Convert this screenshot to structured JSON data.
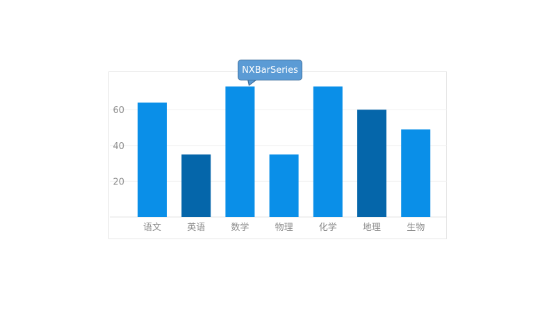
{
  "tooltip": {
    "text": "NXBarSeries"
  },
  "chart_data": {
    "type": "bar",
    "categories": [
      "语文",
      "英语",
      "数学",
      "物理",
      "化学",
      "地理",
      "生物"
    ],
    "values": [
      64,
      35,
      73,
      35,
      73,
      60,
      49
    ],
    "highlighted_indices": [
      1,
      5
    ],
    "yticks": [
      20,
      40,
      60
    ],
    "ylim": [
      0,
      75
    ],
    "grid": true,
    "colors": {
      "bar": "#0a8fe8",
      "bar_highlight": "#0566aa",
      "grid": "#efefef",
      "axis": "#e3e3e3",
      "tick_text": "#8c8c8c"
    }
  }
}
